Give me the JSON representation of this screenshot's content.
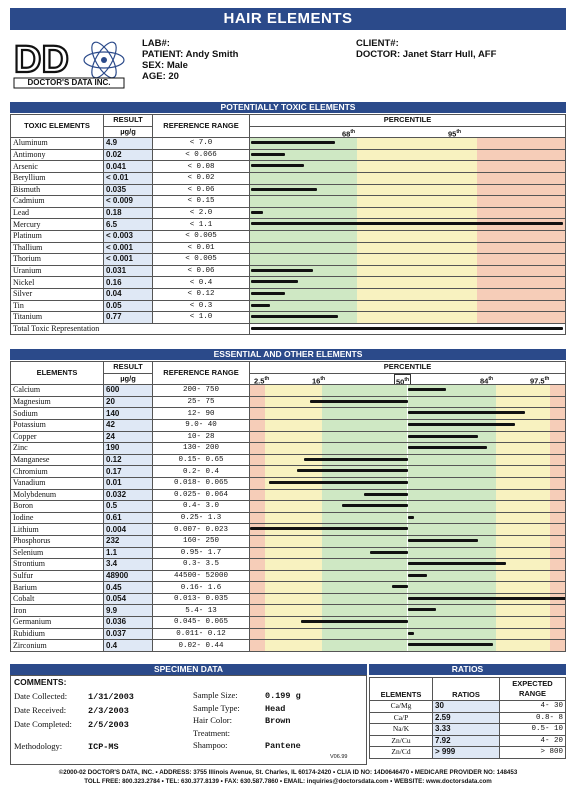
{
  "title": "HAIR ELEMENTS",
  "logo_text": "DOCTOR'S DATA INC.",
  "patient": {
    "lab_label": "LAB#:",
    "patient_label": "PATIENT:",
    "patient_name": "Andy Smith",
    "sex_label": "SEX:",
    "sex": "Male",
    "age_label": "AGE:",
    "age": "20",
    "client_label": "CLIENT#:",
    "doctor_label": "DOCTOR:",
    "doctor": "Janet Starr Hull, AFF"
  },
  "toxic": {
    "section_title": "POTENTIALLY TOXIC ELEMENTS",
    "col_elements": "TOXIC ELEMENTS",
    "col_result": "RESULT",
    "col_unit": "µg/g",
    "col_reference": "REFERENCE RANGE",
    "col_percentile": "PERCENTILE",
    "p68": "68",
    "p95": "95",
    "sup": "th",
    "rows": [
      {
        "name": "Aluminum",
        "result": "4.9",
        "ref": "<   7.0",
        "level": 0.27
      },
      {
        "name": "Antimony",
        "result": "0.02",
        "ref": "< 0.066",
        "level": 0.11
      },
      {
        "name": "Arsenic",
        "result": "0.041",
        "ref": "<  0.08",
        "level": 0.17
      },
      {
        "name": "Beryllium",
        "result": "< 0.01",
        "ref": "<  0.02",
        "level": 0.0
      },
      {
        "name": "Bismuth",
        "result": "0.035",
        "ref": "<  0.06",
        "level": 0.21
      },
      {
        "name": "Cadmium",
        "result": "< 0.009",
        "ref": "<  0.15",
        "level": 0.0
      },
      {
        "name": "Lead",
        "result": "0.18",
        "ref": "<   2.0",
        "level": 0.04
      },
      {
        "name": "Mercury",
        "result": "6.5",
        "ref": "<   1.1",
        "level": 1.0
      },
      {
        "name": "Platinum",
        "result": "< 0.003",
        "ref": "< 0.005",
        "level": 0.0
      },
      {
        "name": "Thallium",
        "result": "< 0.001",
        "ref": "<  0.01",
        "level": 0.0
      },
      {
        "name": "Thorium",
        "result": "< 0.001",
        "ref": "< 0.005",
        "level": 0.0
      },
      {
        "name": "Uranium",
        "result": "0.031",
        "ref": "<  0.06",
        "level": 0.2
      },
      {
        "name": "Nickel",
        "result": "0.16",
        "ref": "<   0.4",
        "level": 0.15
      },
      {
        "name": "Silver",
        "result": "0.04",
        "ref": "<  0.12",
        "level": 0.11
      },
      {
        "name": "Tin",
        "result": "0.05",
        "ref": "<   0.3",
        "level": 0.06
      },
      {
        "name": "Titanium",
        "result": "0.77",
        "ref": "<   1.0",
        "level": 0.28
      }
    ],
    "total_label": "Total Toxic Representation",
    "total_level": 1.0
  },
  "essential": {
    "section_title": "ESSENTIAL AND OTHER ELEMENTS",
    "col_elements": "ELEMENTS",
    "col_result": "RESULT",
    "col_unit": "µg/g",
    "col_reference": "REFERENCE RANGE",
    "col_percentile": "PERCENTILE",
    "p2": "2.5",
    "p16": "16",
    "p50": "50",
    "p84": "84",
    "p975": "97.5",
    "sup": "th",
    "rows": [
      {
        "name": "Calcium",
        "result": "600",
        "ref": "200-   750",
        "pos": 0.62
      },
      {
        "name": "Magnesium",
        "result": "20",
        "ref": "25-    75",
        "pos": 0.19
      },
      {
        "name": "Sodium",
        "result": "140",
        "ref": "12-    90",
        "pos": 0.87
      },
      {
        "name": "Potassium",
        "result": "42",
        "ref": "9.0-    40",
        "pos": 0.84
      },
      {
        "name": "Copper",
        "result": "24",
        "ref": "10-    28",
        "pos": 0.72
      },
      {
        "name": "Zinc",
        "result": "190",
        "ref": "130-   200",
        "pos": 0.75
      },
      {
        "name": "Manganese",
        "result": "0.12",
        "ref": "0.15-  0.65",
        "pos": 0.17
      },
      {
        "name": "Chromium",
        "result": "0.17",
        "ref": "0.2-   0.4",
        "pos": 0.15
      },
      {
        "name": "Vanadium",
        "result": "0.01",
        "ref": "0.018- 0.065",
        "pos": 0.06
      },
      {
        "name": "Molybdenum",
        "result": "0.032",
        "ref": "0.025- 0.064",
        "pos": 0.36
      },
      {
        "name": "Boron",
        "result": "0.5",
        "ref": "0.4-   3.0",
        "pos": 0.29
      },
      {
        "name": "Iodine",
        "result": "0.61",
        "ref": "0.25-   1.3",
        "pos": 0.5
      },
      {
        "name": "Lithium",
        "result": "0.004",
        "ref": "0.007- 0.023",
        "pos": 0.0
      },
      {
        "name": "Phosphorus",
        "result": "232",
        "ref": "160-   250",
        "pos": 0.72
      },
      {
        "name": "Selenium",
        "result": "1.1",
        "ref": "0.95-   1.7",
        "pos": 0.38
      },
      {
        "name": "Strontium",
        "result": "3.4",
        "ref": "0.3-   3.5",
        "pos": 0.81
      },
      {
        "name": "Sulfur",
        "result": "48900",
        "ref": "44500- 52000",
        "pos": 0.56
      },
      {
        "name": "Barium",
        "result": "0.45",
        "ref": "0.16-   1.6",
        "pos": 0.45
      },
      {
        "name": "Cobalt",
        "result": "0.054",
        "ref": "0.013- 0.035",
        "pos": 1.0
      },
      {
        "name": "Iron",
        "result": "9.9",
        "ref": "5.4-    13",
        "pos": 0.59
      },
      {
        "name": "Germanium",
        "result": "0.036",
        "ref": "0.045- 0.065",
        "pos": 0.16
      },
      {
        "name": "Rubidium",
        "result": "0.037",
        "ref": "0.011-  0.12",
        "pos": 0.52
      },
      {
        "name": "Zirconium",
        "result": "0.4",
        "ref": "0.02-  0.44",
        "pos": 0.77
      }
    ]
  },
  "specimen": {
    "section_title": "SPECIMEN DATA",
    "comments_label": "COMMENTS:",
    "collected_label": "Date Collected:",
    "collected": "1/31/2003",
    "received_label": "Date Received:",
    "received": "2/3/2003",
    "completed_label": "Date Completed:",
    "completed": "2/5/2003",
    "methodology_label": "Methodology:",
    "methodology": "ICP-MS",
    "size_label": "Sample Size:",
    "size": "0.199 g",
    "type_label": "Sample Type:",
    "type": "Head",
    "color_label": "Hair Color:",
    "color": "Brown",
    "treatment_label": "Treatment:",
    "treatment": "",
    "shampoo_label": "Shampoo:",
    "shampoo": "Pantene",
    "version": "V06.99"
  },
  "ratios": {
    "section_title": "RATIOS",
    "col_elements": "ELEMENTS",
    "col_ratios": "RATIOS",
    "col_expected": "EXPECTED RANGE",
    "rows": [
      {
        "name": "Ca/Mg",
        "value": "30",
        "range": "4-  30"
      },
      {
        "name": "Ca/P",
        "value": "2.59",
        "range": "0.8-  8"
      },
      {
        "name": "Na/K",
        "value": "3.33",
        "range": "0.5-  10"
      },
      {
        "name": "Zn/Cu",
        "value": "7.92",
        "range": "4-  20"
      },
      {
        "name": "Zn/Cd",
        "value": "> 999",
        "range": ">  800"
      }
    ]
  },
  "footer": {
    "line1": "©2000-02 DOCTOR'S DATA, INC. • ADDRESS: 3755 Illinois Avenue, St. Charles, IL 60174-2420 • CLIA ID NO: 14D0646470 • MEDICARE PROVIDER NO: 148453",
    "line2": "TOLL FREE: 800.323.2784 • TEL: 630.377.8139 • FAX: 630.587.7860 • EMAIL: inquiries@doctorsdata.com • WEBSITE: www.doctorsdata.com"
  }
}
